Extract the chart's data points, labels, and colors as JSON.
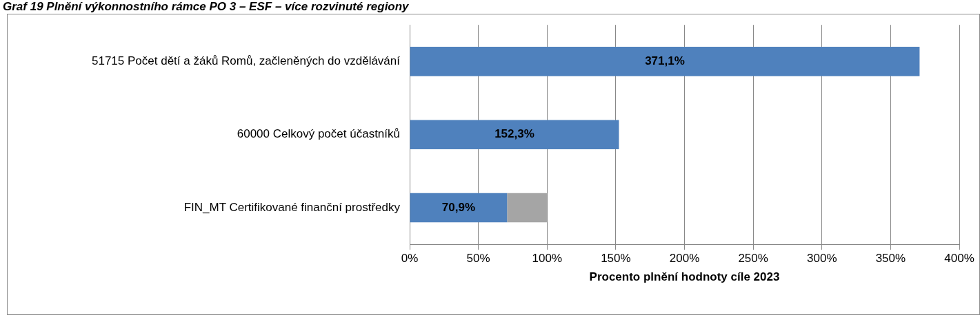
{
  "chart_data": {
    "type": "bar",
    "orientation": "horizontal",
    "stacked": true,
    "title": "Graf 19 Plnění výkonnostního rámce PO 3 – ESF – více rozvinuté regiony",
    "xlabel": "Procento plnění hodnoty cíle 2023",
    "categories": [
      "51715 Počet dětí a žáků Romů, začleněných do vzdělávání",
      "60000 Celkový počet účastníků",
      "FIN_MT Certifikované finanční prostředky"
    ],
    "series": [
      {
        "color": "#4f81bd",
        "values": [
          371.1,
          152.3,
          70.9
        ],
        "value_labels": [
          "371,1%",
          "152,3%",
          "70,9%"
        ]
      },
      {
        "color": "#a5a5a5",
        "values": [
          null,
          null,
          29.1
        ]
      }
    ],
    "xlim": [
      0,
      400
    ],
    "xticks": [
      {
        "value": 0,
        "label": "0%"
      },
      {
        "value": 50,
        "label": "50%"
      },
      {
        "value": 100,
        "label": "100%"
      },
      {
        "value": 150,
        "label": "150%"
      },
      {
        "value": 200,
        "label": "200%"
      },
      {
        "value": 250,
        "label": "250%"
      },
      {
        "value": 300,
        "label": "300%"
      },
      {
        "value": 350,
        "label": "350%"
      },
      {
        "value": 400,
        "label": "400%"
      }
    ],
    "grid": "x",
    "legend": false
  }
}
